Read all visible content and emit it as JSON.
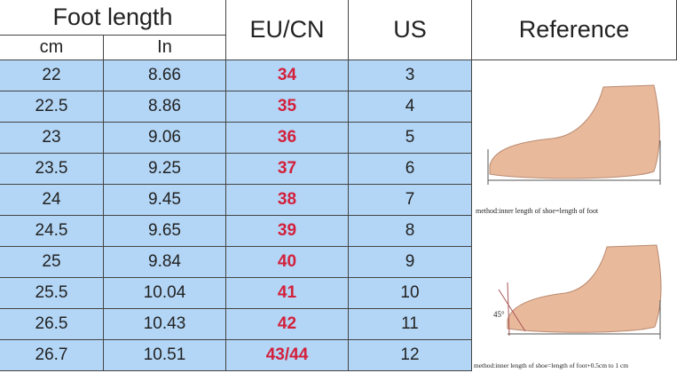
{
  "header": {
    "foot_length": "Foot length",
    "cm": "cm",
    "in": "In",
    "eu_cn": "EU/CN",
    "us": "US",
    "reference": "Reference"
  },
  "table": {
    "rows": [
      [
        "22",
        "8.66",
        "34",
        "3"
      ],
      [
        "22.5",
        "8.86",
        "35",
        "4"
      ],
      [
        "23",
        "9.06",
        "36",
        "5"
      ],
      [
        "23.5",
        "9.25",
        "37",
        "6"
      ],
      [
        "24",
        "9.45",
        "38",
        "7"
      ],
      [
        "24.5",
        "9.65",
        "39",
        "8"
      ],
      [
        "25",
        "9.84",
        "40",
        "9"
      ],
      [
        "25.5",
        "10.04",
        "41",
        "10"
      ],
      [
        "26.5",
        "10.43",
        "42",
        "11"
      ],
      [
        "26.7",
        "10.51",
        "43/44",
        "12"
      ]
    ]
  },
  "reference": {
    "captions": [
      "method:inner length of shoe=length of foot",
      "method:inner length of shoe=length of foot+0.5cm to 1 cm"
    ],
    "angle": "45°"
  }
}
